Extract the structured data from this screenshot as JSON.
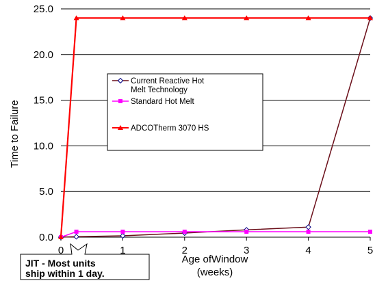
{
  "chart_data": {
    "type": "line",
    "x": [
      0,
      0.25,
      1,
      2,
      3,
      4,
      5
    ],
    "xlim": [
      0,
      5
    ],
    "ylim": [
      0,
      25
    ],
    "x_ticks": [
      "0",
      "1",
      "2",
      "3",
      "4",
      "5"
    ],
    "y_ticks": [
      "0.0",
      "5.0",
      "10.0",
      "15.0",
      "20.0",
      "25.0"
    ],
    "xlabel_line1": "Age ofWindow",
    "xlabel_line2": "(weeks)",
    "ylabel": "Time to Failure",
    "grid": "horizontal",
    "legend_position": "inside-center",
    "series": [
      {
        "name_line1": "Current Reactive Hot",
        "name_line2": "Melt Technology",
        "color": "#6b0f1a",
        "marker": "diamond-open",
        "values": [
          0,
          0.05,
          0.15,
          0.45,
          0.8,
          1.1,
          24
        ]
      },
      {
        "name_line1": "Standard Hot Melt",
        "name_line2": "",
        "color": "#ff00ff",
        "marker": "square",
        "values": [
          0,
          0.6,
          0.6,
          0.6,
          0.6,
          0.6,
          0.6
        ]
      },
      {
        "name_line1": "ADCOTherm 3070 HS",
        "name_line2": "",
        "color": "#ff0000",
        "marker": "triangle",
        "values": [
          0,
          24,
          24,
          24,
          24,
          24,
          24
        ]
      }
    ],
    "annotation": {
      "line1": "JIT - Most units",
      "line2": "ship within 1 day."
    }
  }
}
